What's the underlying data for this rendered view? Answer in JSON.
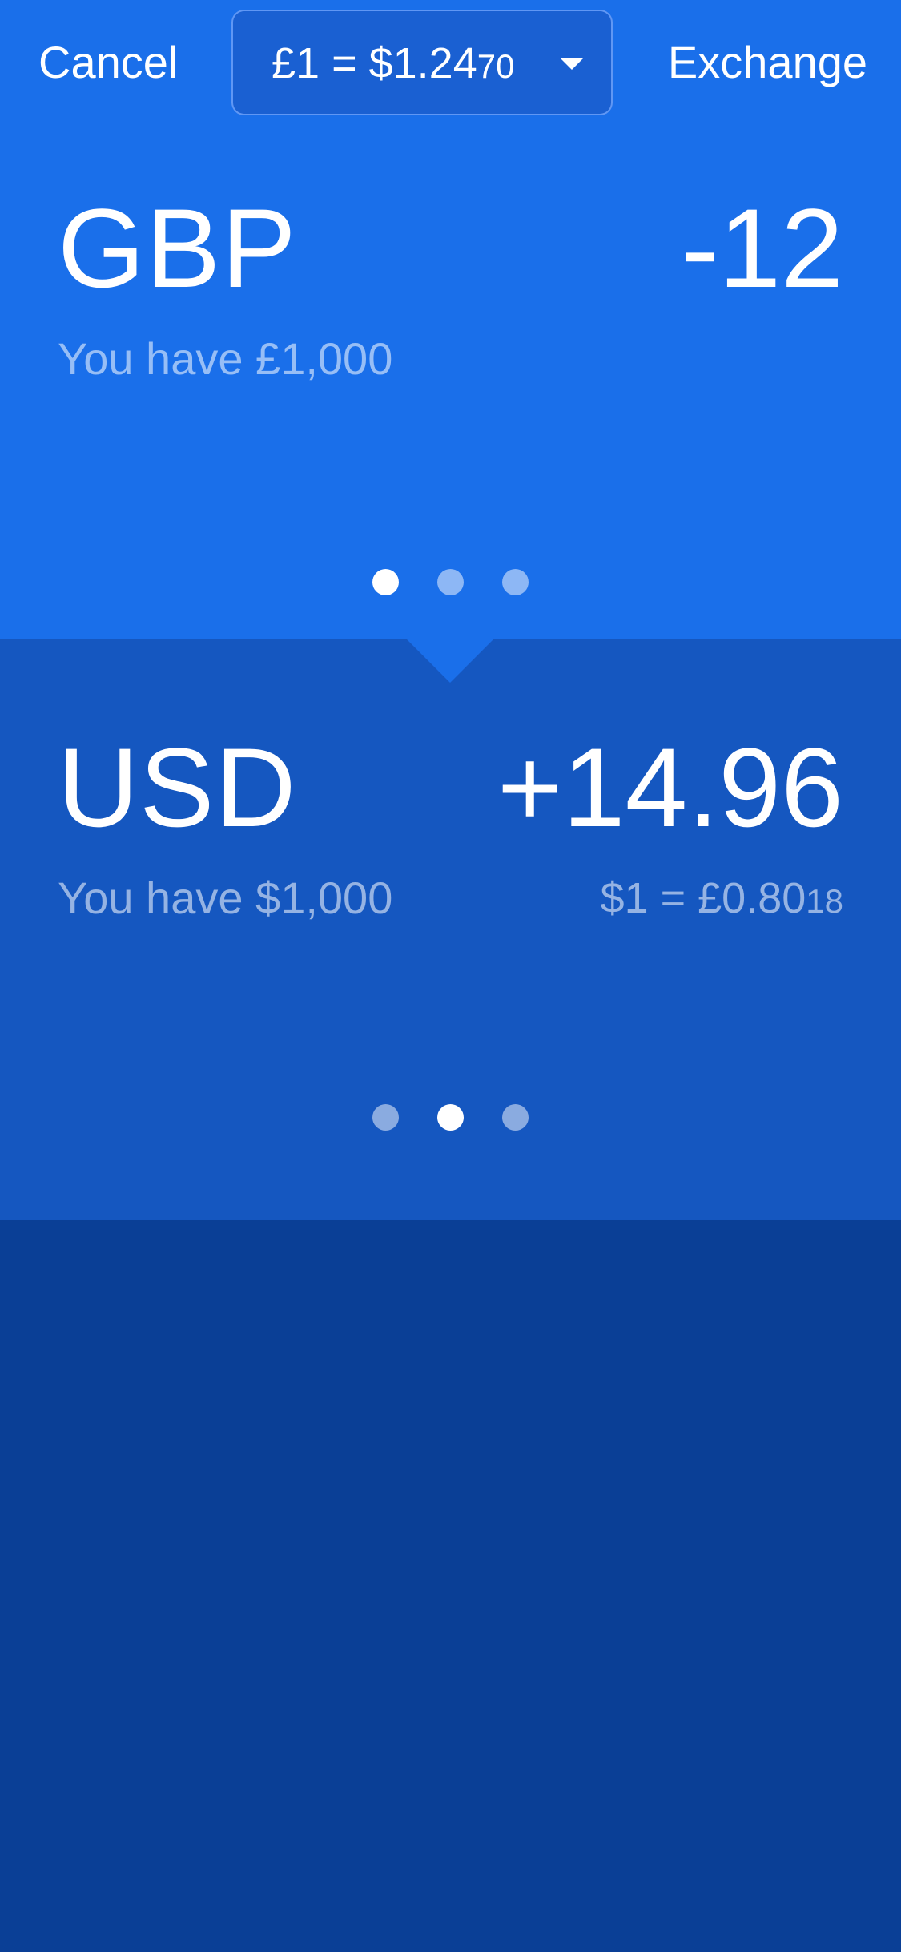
{
  "header": {
    "cancel_label": "Cancel",
    "exchange_label": "Exchange",
    "rate_main": "£1 = $1.24",
    "rate_small": "70"
  },
  "from_currency": {
    "code": "GBP",
    "amount": "-12",
    "balance": "You have £1,000",
    "dots": {
      "count": 3,
      "active_index": 0
    }
  },
  "to_currency": {
    "code": "USD",
    "amount": "+14.96",
    "balance": "You have $1,000",
    "rate_main": "$1 = £0.80",
    "rate_small": "18",
    "dots": {
      "count": 3,
      "active_index": 1
    }
  },
  "colors": {
    "top_bg": "#1a6fea",
    "middle_bg": "#1557c0",
    "bottom_bg": "#0a3f96",
    "text": "#ffffff"
  }
}
